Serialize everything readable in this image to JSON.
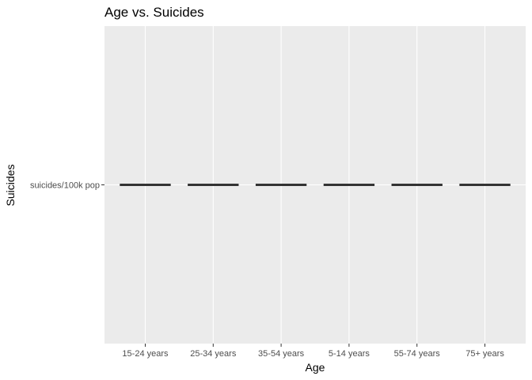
{
  "chart_data": {
    "type": "boxplot",
    "title": "Age vs. Suicides",
    "xlabel": "Age",
    "ylabel": "Suicides",
    "categories": [
      "15-24 years",
      "25-34 years",
      "35-54 years",
      "5-14 years",
      "55-74 years",
      "75+ years"
    ],
    "y_categories": [
      "suicides/100k pop"
    ],
    "values": [
      "suicides/100k pop",
      "suicides/100k pop",
      "suicides/100k pop",
      "suicides/100k pop",
      "suicides/100k pop",
      "suicides/100k pop"
    ],
    "grid": true,
    "legend": "none",
    "colors": {
      "panel_background": "#ebebeb",
      "grid_major": "#ffffff",
      "box_line": "#333333",
      "axis_text": "#4d4d4d",
      "title_text": "#000000"
    }
  }
}
